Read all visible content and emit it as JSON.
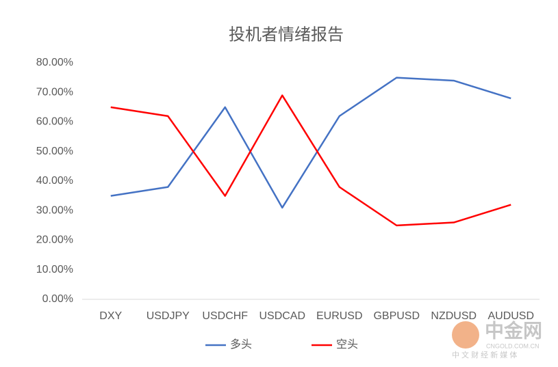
{
  "chart_data": {
    "type": "line",
    "title": "投机者情绪报告",
    "categories": [
      "DXY",
      "USDJPY",
      "USDCHF",
      "USDCAD",
      "EURUSD",
      "GBPUSD",
      "NZDUSD",
      "AUDUSD"
    ],
    "series": [
      {
        "name": "多头",
        "color": "#4472c4",
        "values": [
          35,
          38,
          65,
          31,
          62,
          75,
          74,
          68
        ]
      },
      {
        "name": "空头",
        "color": "#ff0000",
        "values": [
          65,
          62,
          35,
          69,
          38,
          25,
          26,
          32
        ]
      }
    ],
    "ylim": [
      0,
      80
    ],
    "yticks": [
      {
        "value": 0,
        "label": "0.00%"
      },
      {
        "value": 10,
        "label": "10.00%"
      },
      {
        "value": 20,
        "label": "20.00%"
      },
      {
        "value": 30,
        "label": "30.00%"
      },
      {
        "value": 40,
        "label": "40.00%"
      },
      {
        "value": 50,
        "label": "50.00%"
      },
      {
        "value": 60,
        "label": "60.00%"
      },
      {
        "value": 70,
        "label": "70.00%"
      },
      {
        "value": 80,
        "label": "80.00%"
      }
    ],
    "grid": false,
    "legend": "bottom"
  },
  "watermark": {
    "name": "中金网",
    "url": "CNGOLD.COM.CN",
    "slogan": "中 文 财 经 新 媒 体"
  }
}
